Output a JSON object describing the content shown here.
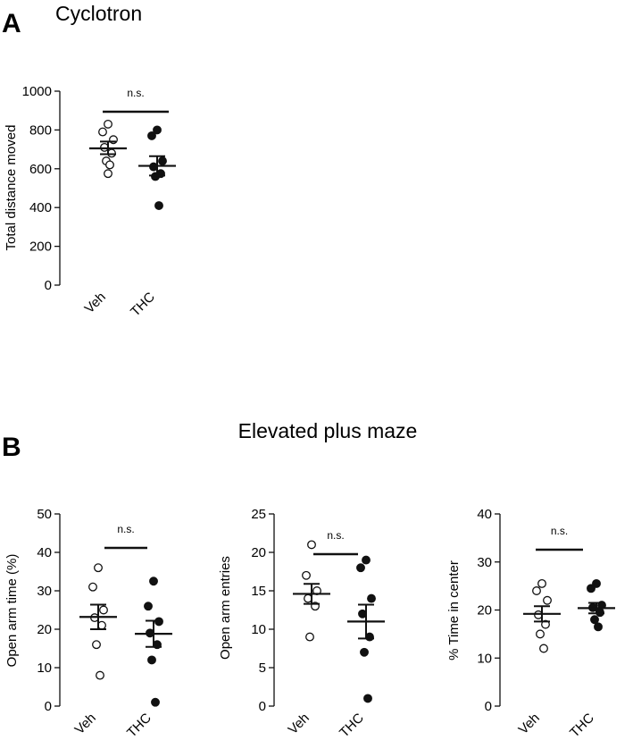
{
  "panels": {
    "a": {
      "letter": "A",
      "title": "Cyclotron"
    },
    "b": {
      "letter": "B",
      "title": "Elevated plus maze"
    }
  },
  "chart_data": [
    {
      "type": "scatter",
      "panel": "A",
      "ylabel": "Total distance moved",
      "ylim": [
        0,
        1000
      ],
      "yticks": [
        0,
        200,
        400,
        600,
        800,
        1000
      ],
      "categories": [
        "Veh",
        "THC"
      ],
      "series": [
        {
          "name": "Veh",
          "filled": false,
          "points": [
            830,
            790,
            750,
            710,
            680,
            640,
            620,
            575
          ],
          "mean": 705,
          "sem_low": 675,
          "sem_high": 740
        },
        {
          "name": "THC",
          "filled": true,
          "points": [
            800,
            770,
            640,
            610,
            575,
            560,
            410
          ],
          "mean": 615,
          "sem_low": 565,
          "sem_high": 665
        }
      ],
      "significance": "n.s."
    },
    {
      "type": "scatter",
      "panel": "B",
      "ylabel": "Open arm time (%)",
      "ylim": [
        0,
        50
      ],
      "yticks": [
        0,
        10,
        20,
        30,
        40,
        50
      ],
      "categories": [
        "Veh",
        "THC"
      ],
      "series": [
        {
          "name": "Veh",
          "filled": false,
          "points": [
            36,
            31,
            25,
            23,
            21,
            16,
            8
          ],
          "mean": 23.2,
          "sem_low": 20,
          "sem_high": 26.4
        },
        {
          "name": "THC",
          "filled": true,
          "points": [
            32.5,
            26,
            22,
            19,
            16,
            12,
            1
          ],
          "mean": 18.8,
          "sem_low": 15.4,
          "sem_high": 22.2
        }
      ],
      "significance": "n.s."
    },
    {
      "type": "scatter",
      "panel": "B",
      "ylabel": "Open arm entries",
      "ylim": [
        0,
        25
      ],
      "yticks": [
        0,
        5,
        10,
        15,
        20,
        25
      ],
      "categories": [
        "Veh",
        "THC"
      ],
      "series": [
        {
          "name": "Veh",
          "filled": false,
          "points": [
            21,
            17,
            15,
            14,
            13,
            9
          ],
          "mean": 14.6,
          "sem_low": 13.3,
          "sem_high": 15.9
        },
        {
          "name": "THC",
          "filled": true,
          "points": [
            19,
            18,
            14,
            12,
            9,
            7,
            1
          ],
          "mean": 11,
          "sem_low": 8.8,
          "sem_high": 13.2
        }
      ],
      "significance": "n.s."
    },
    {
      "type": "scatter",
      "panel": "B",
      "ylabel": "% Time in center",
      "ylim": [
        0,
        40
      ],
      "yticks": [
        0,
        10,
        20,
        30,
        40
      ],
      "categories": [
        "Veh",
        "THC"
      ],
      "series": [
        {
          "name": "Veh",
          "filled": false,
          "points": [
            25.5,
            24,
            22,
            19,
            17,
            15,
            12
          ],
          "mean": 19.2,
          "sem_low": 17.6,
          "sem_high": 20.8
        },
        {
          "name": "THC",
          "filled": true,
          "points": [
            25.5,
            24.5,
            21,
            20.5,
            19.5,
            18,
            16.5
          ],
          "mean": 20.4,
          "sem_low": 19.3,
          "sem_high": 21.5
        }
      ],
      "significance": "n.s."
    }
  ]
}
